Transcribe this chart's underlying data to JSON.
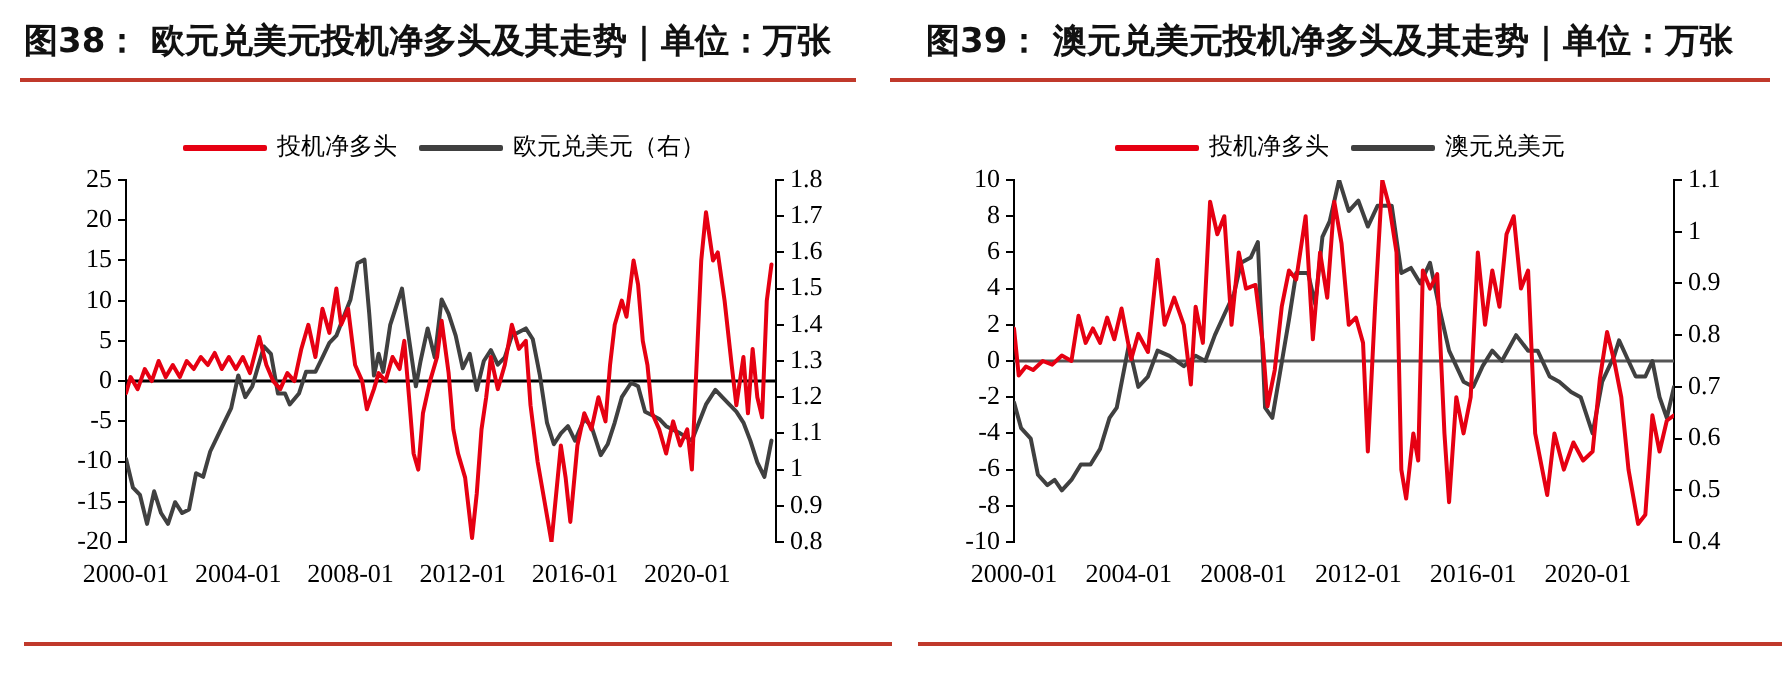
{
  "chart_data": [
    {
      "type": "line",
      "title": "图38： 欧元兑美元投机净多头及其走势｜单位：万张",
      "legend": "top",
      "grid": false,
      "marker": "none",
      "line_style": "solid",
      "xlim": [
        "2000-01",
        "2023-03"
      ],
      "xticks": [
        "2000-01",
        "2004-01",
        "2008-01",
        "2012-01",
        "2016-01",
        "2020-01"
      ],
      "ylim": [
        -20,
        25
      ],
      "yticks": [
        -20,
        -15,
        -10,
        -5,
        0,
        5,
        10,
        15,
        20,
        25
      ],
      "y2lim": [
        0.8,
        1.8
      ],
      "y2ticks": [
        0.8,
        0.9,
        1,
        1.1,
        1.2,
        1.3,
        1.4,
        1.5,
        1.6,
        1.7,
        1.8
      ],
      "ref_lines": [
        {
          "axis": "y",
          "value": 0,
          "color": "#000000"
        }
      ],
      "series": [
        {
          "name": "投机净多头",
          "color": "#e60012",
          "x": [
            "2000-01",
            "2000-03",
            "2000-06",
            "2000-09",
            "2000-12",
            "2001-03",
            "2001-06",
            "2001-09",
            "2001-12",
            "2002-03",
            "2002-06",
            "2002-09",
            "2002-12",
            "2003-03",
            "2003-06",
            "2003-09",
            "2003-12",
            "2004-03",
            "2004-06",
            "2004-10",
            "2005-01",
            "2005-04",
            "2005-07",
            "2005-10",
            "2006-01",
            "2006-04",
            "2006-07",
            "2006-10",
            "2007-01",
            "2007-04",
            "2007-07",
            "2007-09",
            "2007-12",
            "2008-03",
            "2008-06",
            "2008-08",
            "2008-11",
            "2009-01",
            "2009-04",
            "2009-07",
            "2009-10",
            "2009-12",
            "2010-02",
            "2010-04",
            "2010-06",
            "2010-08",
            "2010-11",
            "2011-02",
            "2011-04",
            "2011-07",
            "2011-09",
            "2011-11",
            "2012-02",
            "2012-05",
            "2012-07",
            "2012-09",
            "2012-11",
            "2013-01",
            "2013-04",
            "2013-07",
            "2013-10",
            "2014-01",
            "2014-04",
            "2014-06",
            "2014-09",
            "2014-12",
            "2015-03",
            "2015-05",
            "2015-07",
            "2015-09",
            "2015-11",
            "2016-02",
            "2016-05",
            "2016-08",
            "2016-11",
            "2017-02",
            "2017-04",
            "2017-06",
            "2017-09",
            "2017-11",
            "2018-02",
            "2018-04",
            "2018-06",
            "2018-08",
            "2018-10",
            "2019-01",
            "2019-04",
            "2019-07",
            "2019-10",
            "2020-01",
            "2020-03",
            "2020-05",
            "2020-07",
            "2020-09",
            "2020-12",
            "2021-02",
            "2021-05",
            "2021-08",
            "2021-10",
            "2022-01",
            "2022-03",
            "2022-05",
            "2022-07",
            "2022-09",
            "2022-11",
            "2023-01"
          ],
          "values": [
            -1.5,
            0.5,
            -1,
            1.5,
            0,
            2.5,
            0.5,
            2,
            0.5,
            2.5,
            1.5,
            3,
            2,
            3.5,
            1.5,
            3,
            1.5,
            3,
            1,
            5.5,
            2,
            0,
            -1,
            1,
            0,
            4,
            7,
            3,
            9,
            6,
            11.5,
            7,
            9,
            2,
            0,
            -3.5,
            -1,
            1,
            0,
            3,
            1.5,
            5,
            -2,
            -9,
            -11,
            -4,
            0,
            3,
            7.5,
            1,
            -6,
            -9,
            -12,
            -19.5,
            -14,
            -6,
            -2,
            3,
            -1,
            2,
            7,
            4,
            5,
            -3,
            -10,
            -15,
            -20,
            -14,
            -8,
            -12,
            -17.5,
            -8,
            -4,
            -6,
            -2,
            -5,
            2,
            7,
            10,
            8,
            15,
            12,
            5,
            2,
            -4,
            -6,
            -9,
            -5,
            -8,
            -6,
            -11,
            2,
            15,
            21,
            15,
            16,
            10,
            2,
            -3,
            3,
            -4,
            4,
            -2,
            -4.5,
            10,
            14.5
          ]
        },
        {
          "name": "欧元兑美元（右）",
          "color": "#404040",
          "axis": "y2",
          "x": [
            "2000-01",
            "2000-04",
            "2000-07",
            "2000-10",
            "2001-01",
            "2001-04",
            "2001-07",
            "2001-10",
            "2002-01",
            "2002-04",
            "2002-07",
            "2002-10",
            "2003-01",
            "2003-04",
            "2003-07",
            "2003-10",
            "2004-01",
            "2004-04",
            "2004-07",
            "2004-12",
            "2005-03",
            "2005-06",
            "2005-09",
            "2005-11",
            "2006-03",
            "2006-06",
            "2006-10",
            "2007-01",
            "2007-04",
            "2007-07",
            "2007-10",
            "2008-01",
            "2008-04",
            "2008-07",
            "2008-09",
            "2008-11",
            "2009-01",
            "2009-03",
            "2009-06",
            "2009-09",
            "2009-11",
            "2010-02",
            "2010-05",
            "2010-07",
            "2010-10",
            "2011-01",
            "2011-04",
            "2011-07",
            "2011-10",
            "2012-01",
            "2012-04",
            "2012-07",
            "2012-10",
            "2013-01",
            "2013-04",
            "2013-07",
            "2013-10",
            "2014-04",
            "2014-07",
            "2014-10",
            "2015-01",
            "2015-04",
            "2015-07",
            "2015-10",
            "2016-01",
            "2016-05",
            "2016-08",
            "2016-12",
            "2017-03",
            "2017-06",
            "2017-09",
            "2018-01",
            "2018-04",
            "2018-07",
            "2018-10",
            "2019-01",
            "2019-04",
            "2019-07",
            "2019-10",
            "2020-03",
            "2020-06",
            "2020-09",
            "2021-01",
            "2021-04",
            "2021-07",
            "2021-10",
            "2022-01",
            "2022-04",
            "2022-07",
            "2022-10",
            "2023-01"
          ],
          "values": [
            1.03,
            0.95,
            0.93,
            0.85,
            0.94,
            0.88,
            0.85,
            0.91,
            0.88,
            0.89,
            0.99,
            0.98,
            1.05,
            1.09,
            1.13,
            1.17,
            1.26,
            1.2,
            1.23,
            1.34,
            1.32,
            1.21,
            1.21,
            1.18,
            1.21,
            1.27,
            1.27,
            1.31,
            1.35,
            1.37,
            1.42,
            1.47,
            1.57,
            1.58,
            1.43,
            1.26,
            1.32,
            1.27,
            1.4,
            1.46,
            1.5,
            1.36,
            1.23,
            1.3,
            1.39,
            1.31,
            1.47,
            1.43,
            1.37,
            1.28,
            1.32,
            1.22,
            1.3,
            1.33,
            1.29,
            1.31,
            1.37,
            1.39,
            1.36,
            1.26,
            1.13,
            1.07,
            1.1,
            1.12,
            1.08,
            1.14,
            1.12,
            1.04,
            1.07,
            1.13,
            1.2,
            1.24,
            1.23,
            1.16,
            1.15,
            1.14,
            1.12,
            1.11,
            1.1,
            1.08,
            1.13,
            1.18,
            1.22,
            1.2,
            1.18,
            1.16,
            1.13,
            1.08,
            1.02,
            0.98,
            1.08
          ]
        }
      ]
    },
    {
      "type": "line",
      "title": "图39： 澳元兑美元投机净多头及其走势｜单位：万张",
      "legend": "top",
      "grid": false,
      "marker": "none",
      "line_style": "solid",
      "xlim": [
        "2000-01",
        "2023-01"
      ],
      "xticks": [
        "2000-01",
        "2004-01",
        "2008-01",
        "2012-01",
        "2016-01",
        "2020-01"
      ],
      "ylim": [
        -10,
        10
      ],
      "yticks": [
        -10,
        -8,
        -6,
        -4,
        -2,
        0,
        2,
        4,
        6,
        8,
        10
      ],
      "y2lim": [
        0.4,
        1.1
      ],
      "y2ticks": [
        0.4,
        0.5,
        0.6,
        0.7,
        0.8,
        0.9,
        1,
        1.1
      ],
      "ref_lines": [
        {
          "axis": "y",
          "value": 0,
          "color": "#555555"
        }
      ],
      "series": [
        {
          "name": "投机净多头",
          "color": "#e60012",
          "x": [
            "2000-01",
            "2000-03",
            "2000-06",
            "2000-09",
            "2001-01",
            "2001-05",
            "2001-09",
            "2002-01",
            "2002-04",
            "2002-07",
            "2002-10",
            "2003-01",
            "2003-04",
            "2003-07",
            "2003-10",
            "2004-02",
            "2004-05",
            "2004-09",
            "2005-01",
            "2005-04",
            "2005-08",
            "2005-12",
            "2006-03",
            "2006-05",
            "2006-08",
            "2006-11",
            "2007-02",
            "2007-05",
            "2007-08",
            "2007-11",
            "2008-02",
            "2008-06",
            "2008-09",
            "2008-11",
            "2009-02",
            "2009-05",
            "2009-08",
            "2009-11",
            "2010-03",
            "2010-06",
            "2010-09",
            "2010-12",
            "2011-03",
            "2011-06",
            "2011-09",
            "2011-12",
            "2012-03",
            "2012-05",
            "2012-08",
            "2012-11",
            "2013-02",
            "2013-05",
            "2013-07",
            "2013-09",
            "2013-12",
            "2014-02",
            "2014-04",
            "2014-07",
            "2014-10",
            "2015-01",
            "2015-03",
            "2015-06",
            "2015-09",
            "2015-12",
            "2016-03",
            "2016-06",
            "2016-09",
            "2016-12",
            "2017-03",
            "2017-06",
            "2017-09",
            "2017-12",
            "2018-03",
            "2018-08",
            "2018-11",
            "2019-03",
            "2019-07",
            "2019-11",
            "2020-03",
            "2020-06",
            "2020-09",
            "2020-12",
            "2021-03",
            "2021-06",
            "2021-10",
            "2022-01",
            "2022-04",
            "2022-07",
            "2022-10",
            "2023-01"
          ],
          "values": [
            1.8,
            -0.8,
            -0.3,
            -0.5,
            0,
            -0.2,
            0.3,
            0,
            2.5,
            1,
            1.8,
            1,
            2.4,
            1.2,
            2.9,
            0.1,
            1.5,
            0.5,
            5.6,
            2,
            3.5,
            2,
            -1.3,
            3,
            1,
            8.8,
            7,
            8,
            2,
            6,
            4,
            4.2,
            1,
            -2.5,
            -0.5,
            3,
            5,
            4.5,
            8,
            1.2,
            6,
            3.5,
            8.8,
            6.5,
            2,
            2.4,
            1,
            -5,
            3,
            10,
            8.5,
            6,
            -6,
            -7.6,
            -4,
            -5.5,
            5,
            4,
            4.8,
            -4,
            -7.8,
            -2,
            -4,
            -2,
            6,
            2,
            5,
            3,
            7,
            8,
            4,
            5,
            -4,
            -7.4,
            -4,
            -6,
            -4.5,
            -5.5,
            -5,
            -1,
            1.6,
            0,
            -2,
            -6,
            -9,
            -8.5,
            -3,
            -5,
            -3.3,
            -3
          ]
        },
        {
          "name": "澳元兑美元",
          "color": "#404040",
          "axis": "y2",
          "x": [
            "2000-01",
            "2000-04",
            "2000-08",
            "2000-11",
            "2001-03",
            "2001-06",
            "2001-09",
            "2002-01",
            "2002-05",
            "2002-09",
            "2003-01",
            "2003-05",
            "2003-08",
            "2004-01",
            "2004-05",
            "2004-09",
            "2005-01",
            "2005-06",
            "2005-12",
            "2006-05",
            "2006-09",
            "2007-01",
            "2007-05",
            "2007-09",
            "2007-12",
            "2008-04",
            "2008-07",
            "2008-10",
            "2009-01",
            "2009-04",
            "2009-08",
            "2009-11",
            "2010-04",
            "2010-07",
            "2010-10",
            "2011-01",
            "2011-05",
            "2011-09",
            "2012-01",
            "2012-05",
            "2012-09",
            "2013-03",
            "2013-07",
            "2013-11",
            "2014-03",
            "2014-07",
            "2014-11",
            "2015-03",
            "2015-09",
            "2016-01",
            "2016-05",
            "2016-09",
            "2017-01",
            "2017-07",
            "2017-12",
            "2018-04",
            "2018-09",
            "2019-01",
            "2019-06",
            "2019-10",
            "2020-03",
            "2020-07",
            "2020-12",
            "2021-02",
            "2021-06",
            "2021-09",
            "2022-01",
            "2022-04",
            "2022-07",
            "2022-10",
            "2023-01"
          ],
          "values": [
            0.67,
            0.62,
            0.6,
            0.53,
            0.51,
            0.52,
            0.5,
            0.52,
            0.55,
            0.55,
            0.58,
            0.64,
            0.66,
            0.78,
            0.7,
            0.72,
            0.77,
            0.76,
            0.74,
            0.76,
            0.75,
            0.8,
            0.84,
            0.88,
            0.94,
            0.95,
            0.98,
            0.66,
            0.64,
            0.72,
            0.83,
            0.92,
            0.92,
            0.86,
            0.99,
            1.02,
            1.1,
            1.04,
            1.06,
            1.01,
            1.05,
            1.05,
            0.92,
            0.93,
            0.9,
            0.94,
            0.85,
            0.77,
            0.71,
            0.7,
            0.74,
            0.77,
            0.75,
            0.8,
            0.77,
            0.77,
            0.72,
            0.71,
            0.69,
            0.68,
            0.61,
            0.71,
            0.76,
            0.79,
            0.75,
            0.72,
            0.72,
            0.75,
            0.68,
            0.64,
            0.7
          ]
        }
      ]
    }
  ]
}
